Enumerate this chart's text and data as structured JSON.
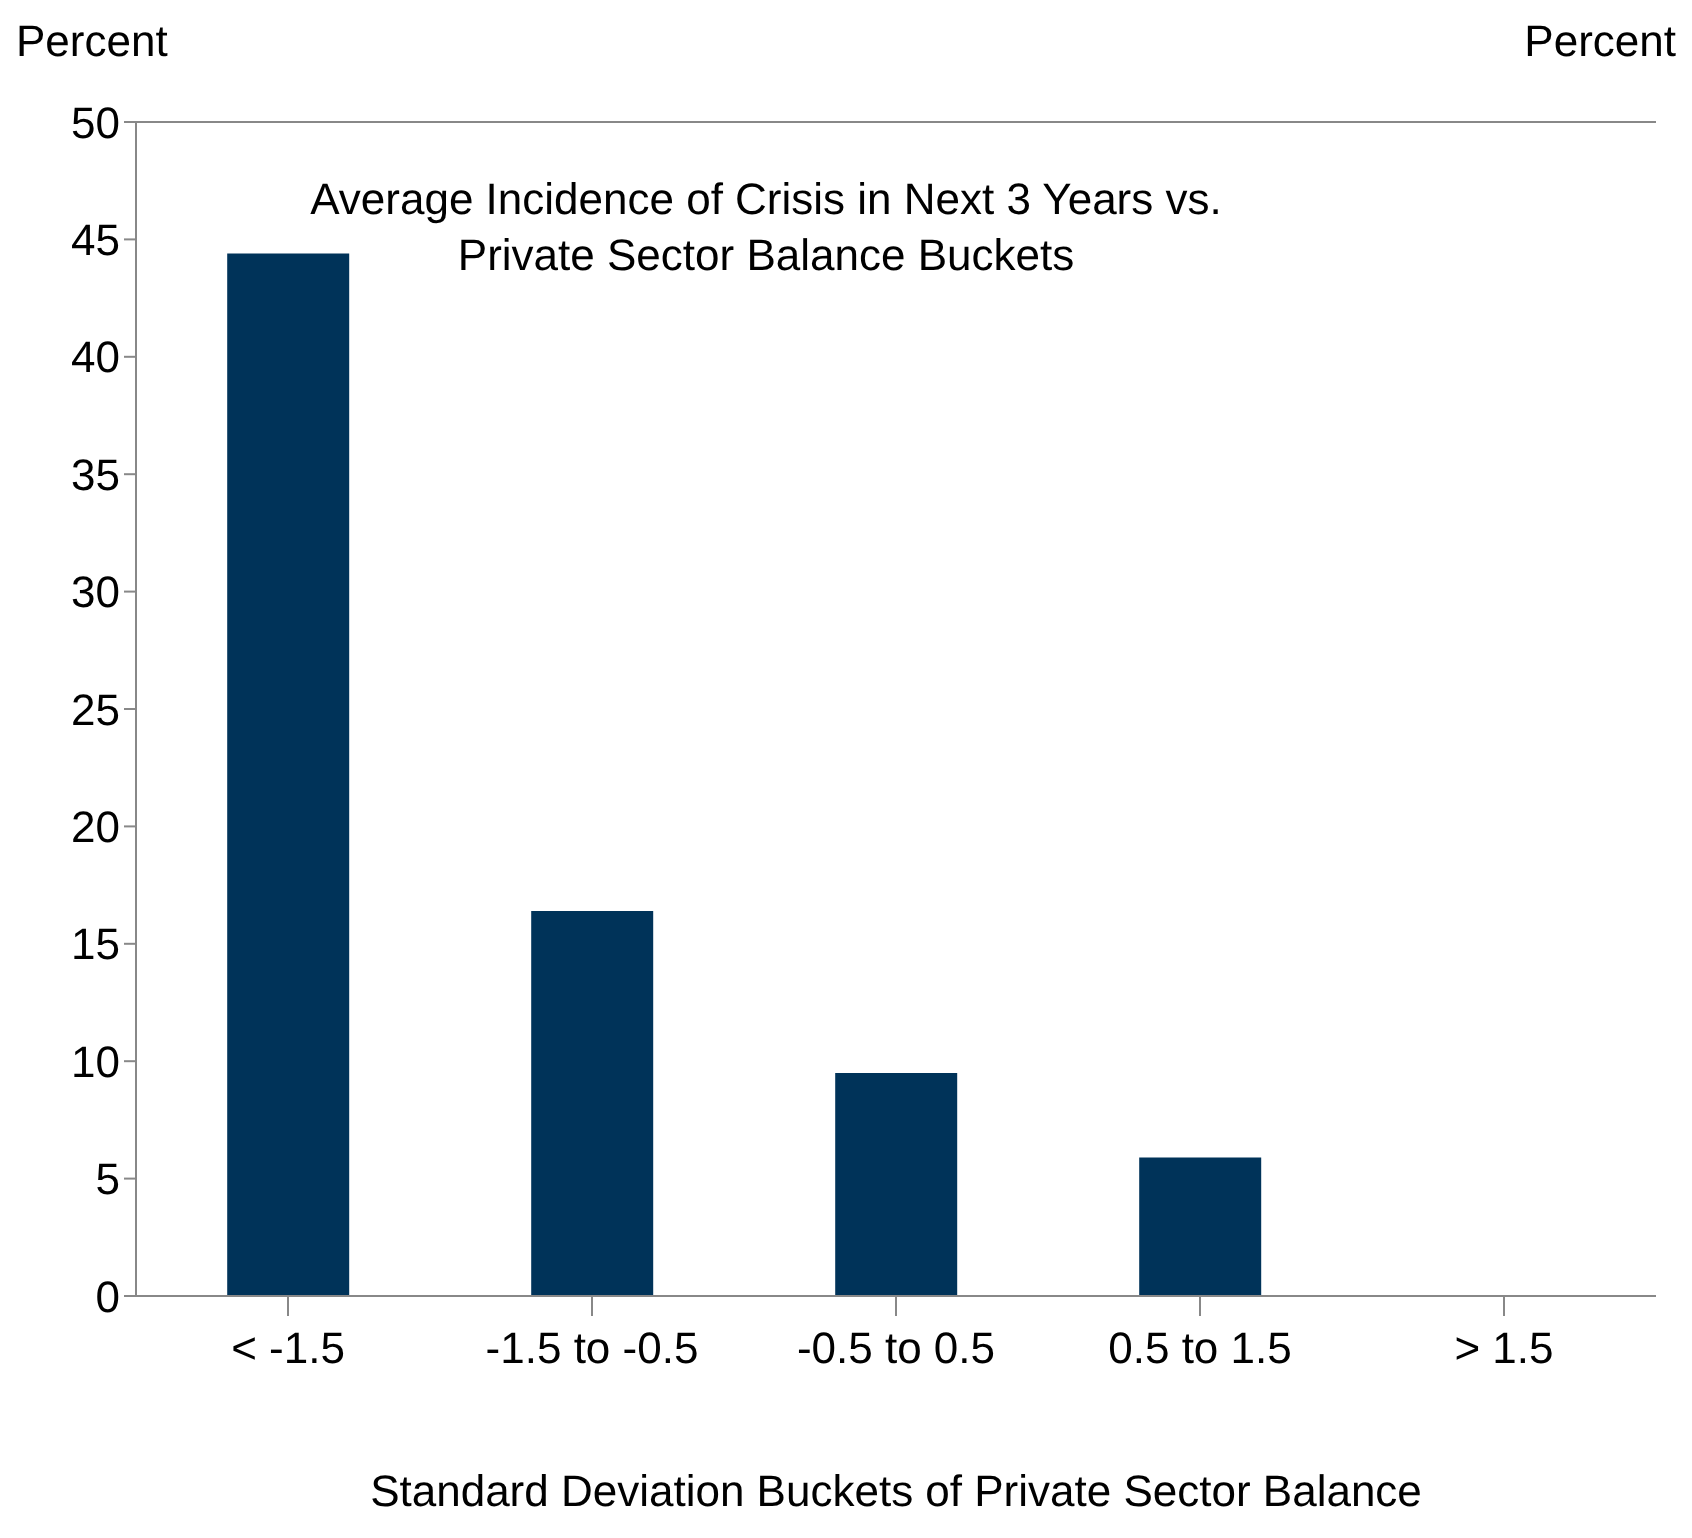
{
  "chart_data": {
    "type": "bar",
    "title": "Average Incidence of Crisis in Next 3 Years vs. Private Sector Balance Buckets",
    "ylabel": "Percent",
    "y2label": "Percent",
    "xlabel": "Standard Deviation Buckets of Private Sector Balance",
    "categories": [
      "< -1.5",
      "-1.5 to -0.5",
      "-0.5 to 0.5",
      "0.5 to 1.5",
      "> 1.5"
    ],
    "values": [
      44.4,
      16.4,
      9.5,
      5.9,
      0
    ],
    "color": "#003359",
    "ylim": [
      0,
      50
    ],
    "yticks": [
      0,
      5,
      10,
      15,
      20,
      25,
      30,
      35,
      40,
      45,
      50
    ]
  }
}
